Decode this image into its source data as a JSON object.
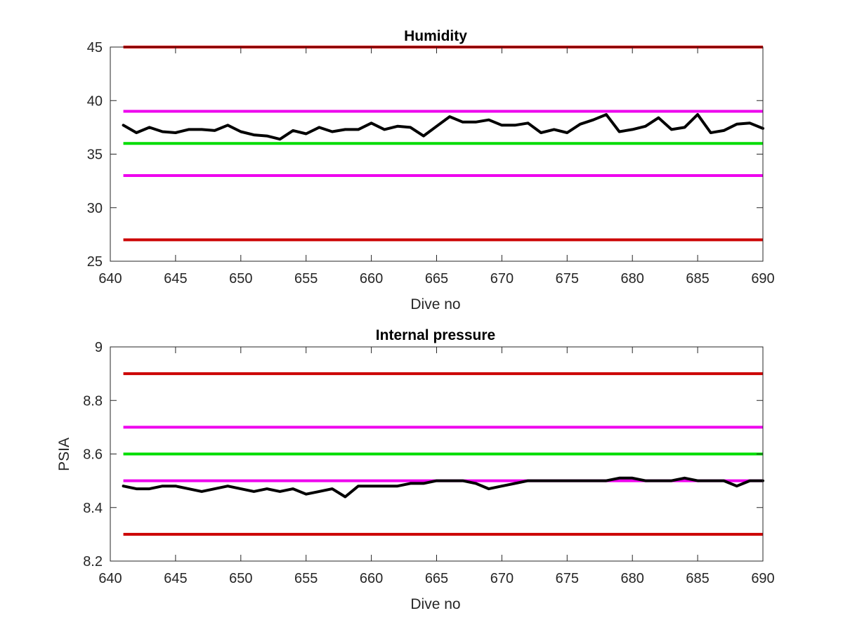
{
  "chart_data": [
    {
      "type": "line",
      "title": "Humidity",
      "xlabel": "Dive no",
      "ylabel": "",
      "xlim": [
        640,
        690
      ],
      "ylim": [
        25,
        45
      ],
      "xticks": [
        "640",
        "645",
        "650",
        "655",
        "660",
        "665",
        "670",
        "675",
        "680",
        "685",
        "690"
      ],
      "yticks": [
        "25",
        "30",
        "35",
        "40",
        "45"
      ],
      "grid": false,
      "thresholds": [
        {
          "value": 45,
          "color": "#cc0000"
        },
        {
          "value": 39,
          "color": "#ee00ee"
        },
        {
          "value": 36,
          "color": "#00dd00"
        },
        {
          "value": 33,
          "color": "#ee00ee"
        },
        {
          "value": 27,
          "color": "#cc0000"
        }
      ],
      "series": [
        {
          "color": "#000000",
          "x": [
            641,
            642,
            643,
            644,
            645,
            646,
            647,
            648,
            649,
            650,
            651,
            652,
            653,
            654,
            655,
            656,
            657,
            658,
            659,
            660,
            661,
            662,
            663,
            664,
            665,
            666,
            667,
            668,
            669,
            670,
            671,
            672,
            673,
            674,
            675,
            676,
            677,
            678,
            679,
            680,
            681,
            682,
            683,
            684,
            685,
            686,
            687,
            688,
            689,
            690
          ],
          "y": [
            37.7,
            37.0,
            37.5,
            37.1,
            37.0,
            37.3,
            37.3,
            37.2,
            37.7,
            37.1,
            36.8,
            36.7,
            36.4,
            37.2,
            36.9,
            37.5,
            37.1,
            37.3,
            37.3,
            37.9,
            37.3,
            37.6,
            37.5,
            36.7,
            37.6,
            38.5,
            38.0,
            38.0,
            38.2,
            37.7,
            37.7,
            37.9,
            37.0,
            37.3,
            37.0,
            37.8,
            38.2,
            38.7,
            37.1,
            37.3,
            37.6,
            38.4,
            37.3,
            37.5,
            38.7,
            37.0,
            37.2,
            37.8,
            37.9,
            37.4
          ]
        }
      ]
    },
    {
      "type": "line",
      "title": "Internal pressure",
      "xlabel": "Dive no",
      "ylabel": "PSIA",
      "xlim": [
        640,
        690
      ],
      "ylim": [
        8.2,
        9
      ],
      "xticks": [
        "640",
        "645",
        "650",
        "655",
        "660",
        "665",
        "670",
        "675",
        "680",
        "685",
        "690"
      ],
      "yticks": [
        "8.2",
        "8.4",
        "8.6",
        "8.8",
        "9"
      ],
      "grid": false,
      "thresholds": [
        {
          "value": 8.9,
          "color": "#cc0000"
        },
        {
          "value": 8.7,
          "color": "#ee00ee"
        },
        {
          "value": 8.6,
          "color": "#00dd00"
        },
        {
          "value": 8.5,
          "color": "#ee00ee"
        },
        {
          "value": 8.3,
          "color": "#cc0000"
        }
      ],
      "series": [
        {
          "color": "#000000",
          "x": [
            641,
            642,
            643,
            644,
            645,
            646,
            647,
            648,
            649,
            650,
            651,
            652,
            653,
            654,
            655,
            656,
            657,
            658,
            659,
            660,
            661,
            662,
            663,
            664,
            665,
            666,
            667,
            668,
            669,
            670,
            671,
            672,
            673,
            674,
            675,
            676,
            677,
            678,
            679,
            680,
            681,
            682,
            683,
            684,
            685,
            686,
            687,
            688,
            689,
            690
          ],
          "y": [
            8.48,
            8.47,
            8.47,
            8.48,
            8.48,
            8.47,
            8.46,
            8.47,
            8.48,
            8.47,
            8.46,
            8.47,
            8.46,
            8.47,
            8.45,
            8.46,
            8.47,
            8.44,
            8.48,
            8.48,
            8.48,
            8.48,
            8.49,
            8.49,
            8.5,
            8.5,
            8.5,
            8.49,
            8.47,
            8.48,
            8.49,
            8.5,
            8.5,
            8.5,
            8.5,
            8.5,
            8.5,
            8.5,
            8.51,
            8.51,
            8.5,
            8.5,
            8.5,
            8.51,
            8.5,
            8.5,
            8.5,
            8.48,
            8.5,
            8.5
          ]
        }
      ]
    }
  ]
}
